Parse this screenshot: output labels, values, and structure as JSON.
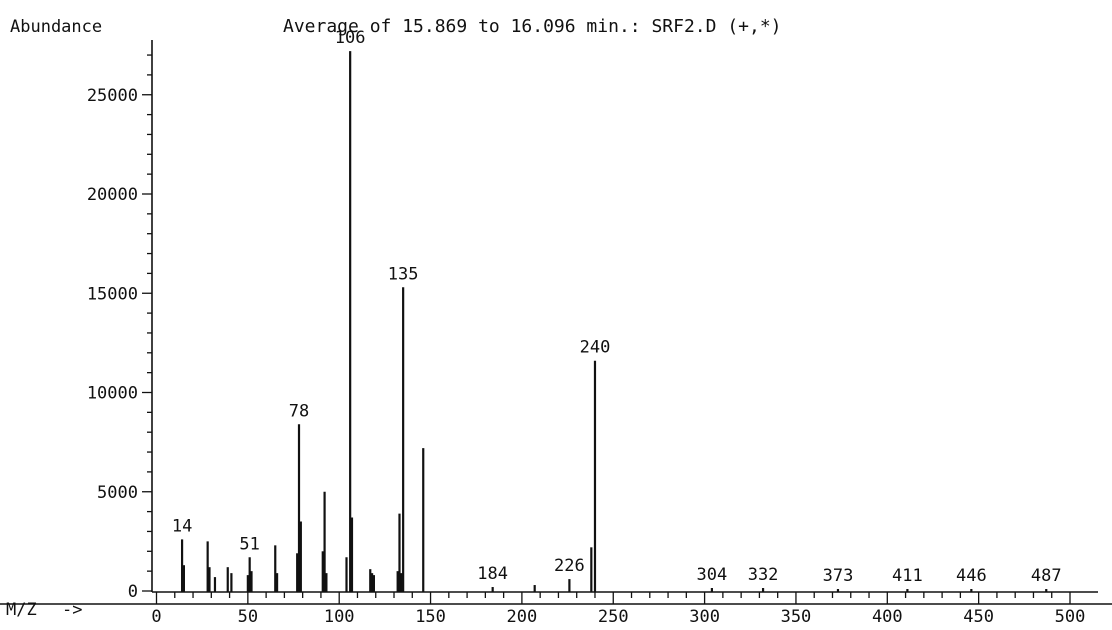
{
  "chart_data": {
    "type": "bar",
    "title": "Average of 15.869 to 16.096 min.: SRF2.D (+,*)",
    "ylabel": "Abundance",
    "xlabel": "M/Z",
    "xlabel_arrow": "->",
    "xlim": [
      -7,
      507
    ],
    "ylim": [
      0,
      27300
    ],
    "x_ticks": [
      0,
      50,
      100,
      150,
      200,
      250,
      300,
      350,
      400,
      450,
      500
    ],
    "y_ticks": [
      0,
      5000,
      10000,
      15000,
      20000,
      25000
    ],
    "peaks": [
      {
        "x": 14,
        "y": 2600
      },
      {
        "x": 15,
        "y": 1300
      },
      {
        "x": 28,
        "y": 2500
      },
      {
        "x": 29,
        "y": 1200
      },
      {
        "x": 32,
        "y": 700
      },
      {
        "x": 39,
        "y": 1200
      },
      {
        "x": 41,
        "y": 900
      },
      {
        "x": 50,
        "y": 800
      },
      {
        "x": 51,
        "y": 1700
      },
      {
        "x": 52,
        "y": 1000
      },
      {
        "x": 65,
        "y": 2300
      },
      {
        "x": 66,
        "y": 900
      },
      {
        "x": 77,
        "y": 1900
      },
      {
        "x": 78,
        "y": 8400
      },
      {
        "x": 79,
        "y": 3500
      },
      {
        "x": 91,
        "y": 2000
      },
      {
        "x": 92,
        "y": 5000
      },
      {
        "x": 93,
        "y": 900
      },
      {
        "x": 104,
        "y": 1700
      },
      {
        "x": 106,
        "y": 27200
      },
      {
        "x": 107,
        "y": 3700
      },
      {
        "x": 117,
        "y": 1100
      },
      {
        "x": 118,
        "y": 900
      },
      {
        "x": 119,
        "y": 800
      },
      {
        "x": 132,
        "y": 1000
      },
      {
        "x": 133,
        "y": 3900
      },
      {
        "x": 134,
        "y": 900
      },
      {
        "x": 135,
        "y": 15300
      },
      {
        "x": 146,
        "y": 7200
      },
      {
        "x": 184,
        "y": 200
      },
      {
        "x": 207,
        "y": 300
      },
      {
        "x": 226,
        "y": 600
      },
      {
        "x": 238,
        "y": 2200
      },
      {
        "x": 240,
        "y": 11600
      },
      {
        "x": 304,
        "y": 150
      },
      {
        "x": 332,
        "y": 150
      },
      {
        "x": 373,
        "y": 100
      },
      {
        "x": 411,
        "y": 100
      },
      {
        "x": 446,
        "y": 100
      },
      {
        "x": 487,
        "y": 100
      }
    ],
    "peak_labels": [
      {
        "x": 14,
        "y": 2600,
        "label": "14"
      },
      {
        "x": 51,
        "y": 1700,
        "label": "51"
      },
      {
        "x": 78,
        "y": 8400,
        "label": "78"
      },
      {
        "x": 106,
        "y": 27200,
        "label": "106"
      },
      {
        "x": 135,
        "y": 15300,
        "label": "135"
      },
      {
        "x": 184,
        "y": 200,
        "label": "184"
      },
      {
        "x": 226,
        "y": 600,
        "label": "226"
      },
      {
        "x": 240,
        "y": 11600,
        "label": "240"
      },
      {
        "x": 304,
        "y": 150,
        "label": "304"
      },
      {
        "x": 332,
        "y": 150,
        "label": "332"
      },
      {
        "x": 373,
        "y": 100,
        "label": "373"
      },
      {
        "x": 411,
        "y": 100,
        "label": "411"
      },
      {
        "x": 446,
        "y": 100,
        "label": "446"
      },
      {
        "x": 487,
        "y": 100,
        "label": "487"
      }
    ]
  }
}
